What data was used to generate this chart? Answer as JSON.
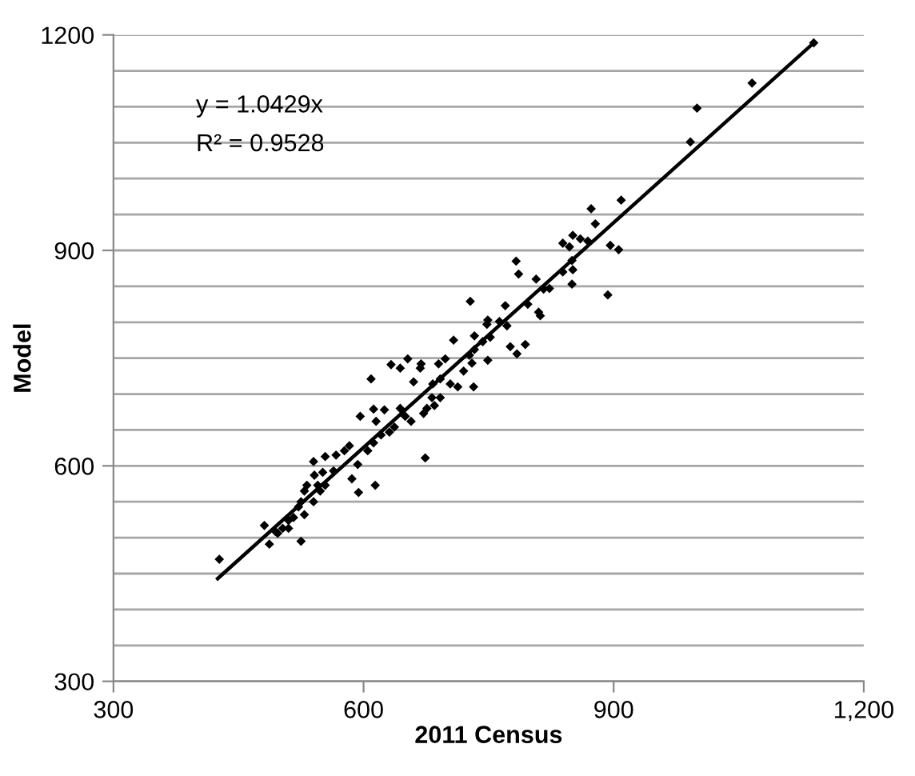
{
  "chart_data": {
    "type": "scatter",
    "xlabel": "2011 Census",
    "ylabel": "Model",
    "annotations": [
      "y = 1.0429x",
      "R² = 0.9528"
    ],
    "xlim": [
      300,
      1200
    ],
    "ylim": [
      300,
      1200
    ],
    "xticks": [
      300,
      600,
      900,
      {
        "value": 1200,
        "label": "1,200"
      }
    ],
    "yticks": [
      300,
      {
        "value": 350,
        "label": null
      },
      {
        "value": 400,
        "label": null
      },
      {
        "value": 450,
        "label": null
      },
      {
        "value": 500,
        "label": null
      },
      {
        "value": 550,
        "label": null
      },
      600,
      {
        "value": 650,
        "label": null
      },
      {
        "value": 700,
        "label": null
      },
      {
        "value": 750,
        "label": null
      },
      {
        "value": 800,
        "label": null
      },
      {
        "value": 850,
        "label": null
      },
      900,
      {
        "value": 950,
        "label": null
      },
      {
        "value": 1000,
        "label": null
      },
      {
        "value": 1050,
        "label": null
      },
      {
        "value": 1100,
        "label": null
      },
      {
        "value": 1150,
        "label": null
      },
      1200
    ],
    "grid": "y",
    "series": [
      {
        "marker": "diamond",
        "color": "#000000",
        "x": [
          1140,
          1066,
          1000,
          992,
          909,
          873,
          878,
          839,
          851,
          869,
          896,
          906,
          893,
          860,
          847,
          850,
          839,
          851,
          850,
          823,
          816,
          807,
          783,
          786,
          797,
          810,
          812,
          794,
          784,
          776,
          770,
          772,
          763,
          749,
          748,
          752,
          743,
          733,
          728,
          733,
          727,
          749,
          730,
          732,
          720,
          708,
          698,
          690,
          692,
          704,
          713,
          683,
          669,
          668,
          653,
          633,
          644,
          660,
          682,
          685,
          676,
          672,
          692,
          609,
          625,
          612,
          596,
          615,
          644,
          650,
          657,
          637,
          631,
          621,
          612,
          605,
          583,
          577,
          554,
          674,
          614,
          594,
          586,
          593,
          567,
          564,
          554,
          541,
          545,
          540,
          532,
          529,
          551,
          540,
          525,
          522,
          529,
          516,
          510,
          503,
          497,
          481,
          487,
          525,
          427,
          548,
          510,
          494
        ],
        "values": [
          1189,
          1133,
          1098,
          1051,
          970,
          958,
          937,
          910,
          921,
          913,
          907,
          901,
          838,
          916,
          905,
          886,
          870,
          873,
          853,
          847,
          846,
          860,
          885,
          867,
          825,
          814,
          809,
          769,
          756,
          766,
          823,
          795,
          801,
          803,
          797,
          779,
          773,
          781,
          829,
          762,
          754,
          747,
          743,
          710,
          732,
          775,
          749,
          742,
          721,
          714,
          710,
          714,
          742,
          736,
          749,
          741,
          736,
          717,
          695,
          684,
          680,
          673,
          695,
          721,
          678,
          679,
          669,
          662,
          680,
          669,
          662,
          654,
          647,
          643,
          632,
          621,
          628,
          621,
          613,
          611,
          573,
          563,
          582,
          602,
          615,
          593,
          573,
          587,
          573,
          606,
          573,
          565,
          591,
          550,
          550,
          543,
          532,
          528,
          524,
          513,
          506,
          517,
          491,
          495,
          470,
          565,
          513,
          509
        ]
      },
      {
        "type": "line",
        "marker": "none",
        "line_style": "solid",
        "color": "#000000",
        "x": [
          425,
          1140
        ],
        "values": [
          443,
          1189
        ]
      }
    ]
  }
}
